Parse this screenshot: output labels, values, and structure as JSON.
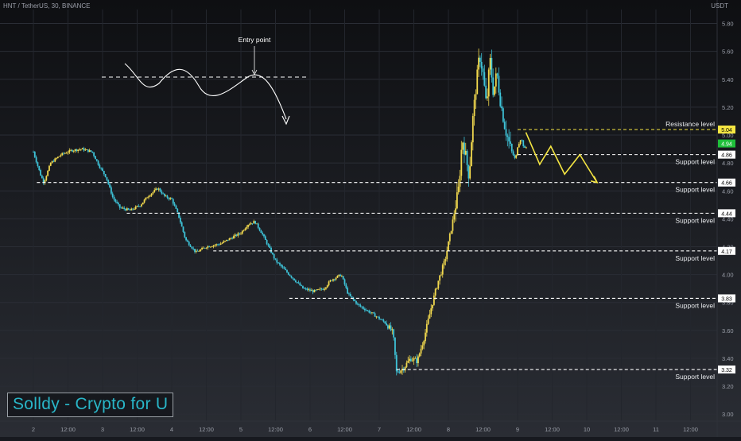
{
  "header": {
    "symbol_line": "HNT / TetherUS, 30, BINANCE"
  },
  "axis": {
    "unit": "USDT"
  },
  "brand": {
    "text": "Solldy - Crypto for U"
  },
  "colors": {
    "background": "#17191f",
    "up_candle": "#f2d94e",
    "down_candle": "#3ec3d8",
    "level_line": "#ffffff",
    "resistance_line": "#f5e642",
    "projection": "#f5e642",
    "current_price_tag": "#1fbf3a"
  },
  "chart_data": {
    "type": "candlestick",
    "title": "",
    "y_axis": {
      "min": 2.95,
      "max": 5.9,
      "ticks": [
        "3.00",
        "3.20",
        "3.40",
        "3.60",
        "3.80",
        "4.00",
        "4.20",
        "4.40",
        "4.60",
        "4.80",
        "5.00",
        "5.20",
        "5.40",
        "5.60",
        "5.80"
      ]
    },
    "x_axis": {
      "labels": [
        "2",
        "12:00",
        "3",
        "12:00",
        "4",
        "12:00",
        "5",
        "12:00",
        "6",
        "12:00",
        "7",
        "12:00",
        "8",
        "12:00",
        "9",
        "12:00",
        "10",
        "12:00",
        "11",
        "12:00"
      ]
    },
    "price_path": [
      {
        "d": 0.0,
        "p": 4.88
      },
      {
        "d": 0.1,
        "p": 4.72
      },
      {
        "d": 0.15,
        "p": 4.66
      },
      {
        "d": 0.25,
        "p": 4.8
      },
      {
        "d": 0.4,
        "p": 4.86
      },
      {
        "d": 0.55,
        "p": 4.89
      },
      {
        "d": 0.7,
        "p": 4.9
      },
      {
        "d": 0.85,
        "p": 4.88
      },
      {
        "d": 0.95,
        "p": 4.78
      },
      {
        "d": 1.05,
        "p": 4.7
      },
      {
        "d": 1.15,
        "p": 4.55
      },
      {
        "d": 1.25,
        "p": 4.48
      },
      {
        "d": 1.4,
        "p": 4.46
      },
      {
        "d": 1.55,
        "p": 4.5
      },
      {
        "d": 1.65,
        "p": 4.56
      },
      {
        "d": 1.8,
        "p": 4.62
      },
      {
        "d": 1.9,
        "p": 4.56
      },
      {
        "d": 2.0,
        "p": 4.54
      },
      {
        "d": 2.1,
        "p": 4.42
      },
      {
        "d": 2.2,
        "p": 4.25
      },
      {
        "d": 2.35,
        "p": 4.16
      },
      {
        "d": 2.5,
        "p": 4.2
      },
      {
        "d": 2.7,
        "p": 4.22
      },
      {
        "d": 2.85,
        "p": 4.26
      },
      {
        "d": 3.0,
        "p": 4.3
      },
      {
        "d": 3.1,
        "p": 4.36
      },
      {
        "d": 3.2,
        "p": 4.38
      },
      {
        "d": 3.3,
        "p": 4.3
      },
      {
        "d": 3.4,
        "p": 4.2
      },
      {
        "d": 3.5,
        "p": 4.1
      },
      {
        "d": 3.7,
        "p": 4.0
      },
      {
        "d": 3.9,
        "p": 3.9
      },
      {
        "d": 4.05,
        "p": 3.88
      },
      {
        "d": 4.2,
        "p": 3.9
      },
      {
        "d": 4.3,
        "p": 3.96
      },
      {
        "d": 4.45,
        "p": 4.0
      },
      {
        "d": 4.55,
        "p": 3.86
      },
      {
        "d": 4.7,
        "p": 3.78
      },
      {
        "d": 4.9,
        "p": 3.72
      },
      {
        "d": 5.1,
        "p": 3.65
      },
      {
        "d": 5.2,
        "p": 3.58
      },
      {
        "d": 5.25,
        "p": 3.3
      },
      {
        "d": 5.35,
        "p": 3.33
      },
      {
        "d": 5.45,
        "p": 3.4
      },
      {
        "d": 5.55,
        "p": 3.38
      },
      {
        "d": 5.65,
        "p": 3.55
      },
      {
        "d": 5.75,
        "p": 3.76
      },
      {
        "d": 5.85,
        "p": 3.95
      },
      {
        "d": 5.95,
        "p": 4.1
      },
      {
        "d": 6.05,
        "p": 4.35
      },
      {
        "d": 6.15,
        "p": 4.62
      },
      {
        "d": 6.2,
        "p": 4.98
      },
      {
        "d": 6.25,
        "p": 4.85
      },
      {
        "d": 6.3,
        "p": 4.7
      },
      {
        "d": 6.35,
        "p": 5.1
      },
      {
        "d": 6.4,
        "p": 5.35
      },
      {
        "d": 6.45,
        "p": 5.58
      },
      {
        "d": 6.5,
        "p": 5.44
      },
      {
        "d": 6.55,
        "p": 5.2
      },
      {
        "d": 6.6,
        "p": 5.55
      },
      {
        "d": 6.65,
        "p": 5.3
      },
      {
        "d": 6.7,
        "p": 5.45
      },
      {
        "d": 6.75,
        "p": 5.25
      },
      {
        "d": 6.82,
        "p": 5.05
      },
      {
        "d": 6.9,
        "p": 4.9
      },
      {
        "d": 6.97,
        "p": 4.82
      },
      {
        "d": 7.0,
        "p": 4.92
      },
      {
        "d": 7.05,
        "p": 4.98
      },
      {
        "d": 7.1,
        "p": 4.9
      },
      {
        "d": 7.14,
        "p": 4.92
      }
    ],
    "levels": [
      {
        "label": "Resistance level",
        "value": 5.04,
        "tag": "5.04",
        "type": "resistance"
      },
      {
        "label": "Support level",
        "value": 4.86,
        "tag": "4.86",
        "type": "support"
      },
      {
        "label": "Support level",
        "value": 4.66,
        "tag": "4.66",
        "type": "support"
      },
      {
        "label": "Support level",
        "value": 4.44,
        "tag": "4.44",
        "type": "support"
      },
      {
        "label": "Support level",
        "value": 4.17,
        "tag": "4.17",
        "type": "support"
      },
      {
        "label": "Support level",
        "value": 3.83,
        "tag": "3.83",
        "type": "support"
      },
      {
        "label": "Support level",
        "value": 3.32,
        "tag": "3.32",
        "type": "support"
      }
    ],
    "current_price": {
      "tag": "4.94",
      "value": 4.94
    },
    "projection_path": [
      {
        "d": 7.12,
        "p": 5.02
      },
      {
        "d": 7.32,
        "p": 4.79
      },
      {
        "d": 7.48,
        "p": 4.92
      },
      {
        "d": 7.68,
        "p": 4.72
      },
      {
        "d": 7.9,
        "p": 4.86
      },
      {
        "d": 8.15,
        "p": 4.66
      }
    ],
    "annotation": {
      "label": "Entry point"
    }
  }
}
